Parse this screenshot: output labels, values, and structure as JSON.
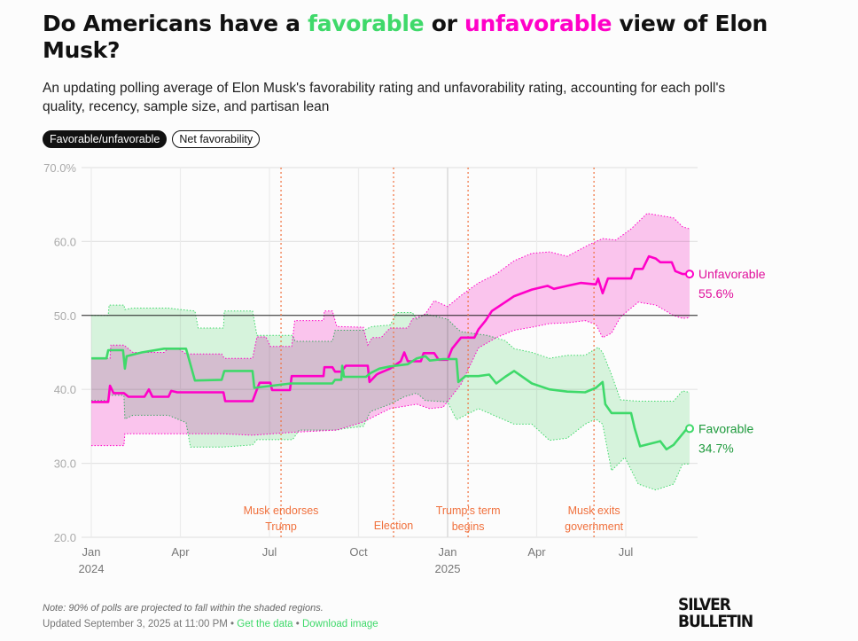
{
  "title": {
    "prefix": "Do Americans have a ",
    "favorable": "favorable",
    "middle": " or ",
    "unfavorable": "unfavorable",
    "suffix": " view of Elon Musk?"
  },
  "subtitle": "An updating polling average of Elon Musk's favorability rating and unfavorability rating, accounting for each poll's quality, recency, sample size, and partisan lean",
  "toggles": [
    {
      "label": "Favorable/unfavorable",
      "active": true
    },
    {
      "label": "Net favorability",
      "active": false
    }
  ],
  "footer": {
    "note": "Note: 90% of polls are projected to fall within the shaded regions.",
    "updated": "Updated September 3, 2025 at 11:00 PM",
    "sep": " • ",
    "get_data": "Get the data",
    "download": "Download image"
  },
  "logo": {
    "line1": "SILVER",
    "line2": "BULLETIN"
  },
  "colors": {
    "favorable": "#3fd96a",
    "unfavorable": "#ff00c8",
    "fav_band": "#d9f6df",
    "unf_band": "#fdc7f0",
    "event": "#f0703c",
    "fav_label": "#1e9a3c",
    "unf_label": "#e0109c"
  },
  "chart_data": {
    "type": "line",
    "x_unit": "months since Jan 2024",
    "xlim": [
      0,
      20.6
    ],
    "ylim": [
      20,
      70
    ],
    "yticks": [
      {
        "v": 70,
        "label": "70.0%"
      },
      {
        "v": 60,
        "label": "60.0"
      },
      {
        "v": 50,
        "label": "50.0"
      },
      {
        "v": 40,
        "label": "40.0"
      },
      {
        "v": 30,
        "label": "30.0"
      },
      {
        "v": 20,
        "label": "20.0"
      }
    ],
    "xticks": [
      {
        "v": 0,
        "label": "Jan",
        "year": "2024"
      },
      {
        "v": 3,
        "label": "Apr"
      },
      {
        "v": 6,
        "label": "Jul"
      },
      {
        "v": 9,
        "label": "Oct"
      },
      {
        "v": 12,
        "label": "Jan",
        "year": "2025"
      },
      {
        "v": 15,
        "label": "Apr"
      },
      {
        "v": 18,
        "label": "Jul"
      }
    ],
    "reference_line": 50,
    "events": [
      {
        "x": 6.39,
        "lines": [
          "Musk endorses",
          "Trump"
        ]
      },
      {
        "x": 10.18,
        "lines": [
          "Election"
        ]
      },
      {
        "x": 12.69,
        "lines": [
          "Trump's term",
          "begins"
        ]
      },
      {
        "x": 16.93,
        "lines": [
          "Musk exits",
          "government"
        ]
      }
    ],
    "series": [
      {
        "name": "Unfavorable",
        "final_label": "55.6%",
        "color_key": "unfavorable",
        "values": [
          [
            0,
            38.3
          ],
          [
            0.57,
            38.3
          ],
          [
            0.63,
            40.5
          ],
          [
            0.75,
            39.5
          ],
          [
            1.1,
            39.5
          ],
          [
            1.25,
            39
          ],
          [
            1.79,
            39
          ],
          [
            1.94,
            40
          ],
          [
            2.06,
            39
          ],
          [
            2.6,
            39
          ],
          [
            2.69,
            39.8
          ],
          [
            2.9,
            39.6
          ],
          [
            4.45,
            39.6
          ],
          [
            4.51,
            38.4
          ],
          [
            5.43,
            38.4
          ],
          [
            5.58,
            40
          ],
          [
            5.67,
            40.9
          ],
          [
            6.03,
            40.9
          ],
          [
            6.09,
            39.9
          ],
          [
            6.69,
            39.9
          ],
          [
            6.75,
            41.8
          ],
          [
            7.82,
            41.8
          ],
          [
            7.85,
            43
          ],
          [
            8.12,
            43
          ],
          [
            8.21,
            42.4
          ],
          [
            8.42,
            42.4
          ],
          [
            8.57,
            43.2
          ],
          [
            9.31,
            43.2
          ],
          [
            9.37,
            41
          ],
          [
            9.61,
            42
          ],
          [
            9.7,
            42.2
          ],
          [
            10.06,
            42.8
          ],
          [
            10.42,
            43.8
          ],
          [
            10.54,
            45
          ],
          [
            10.66,
            43.8
          ],
          [
            11.1,
            43.8
          ],
          [
            11.19,
            44.9
          ],
          [
            11.55,
            44.9
          ],
          [
            11.7,
            44
          ],
          [
            12.0,
            44
          ],
          [
            12.15,
            45.5
          ],
          [
            12.45,
            47
          ],
          [
            12.9,
            47
          ],
          [
            13.04,
            48.1
          ],
          [
            13.28,
            49.3
          ],
          [
            13.49,
            50.6
          ],
          [
            13.94,
            51.8
          ],
          [
            14.24,
            52.6
          ],
          [
            14.84,
            53.5
          ],
          [
            15.37,
            54
          ],
          [
            15.58,
            53.6
          ],
          [
            16.03,
            54
          ],
          [
            16.48,
            54.4
          ],
          [
            16.99,
            54.2
          ],
          [
            17.07,
            55
          ],
          [
            17.22,
            53
          ],
          [
            17.4,
            55
          ],
          [
            18.18,
            55
          ],
          [
            18.3,
            56.3
          ],
          [
            18.57,
            56.3
          ],
          [
            18.78,
            58
          ],
          [
            19.01,
            57.7
          ],
          [
            19.16,
            57.2
          ],
          [
            19.55,
            57.2
          ],
          [
            19.67,
            56
          ],
          [
            19.91,
            55.6
          ],
          [
            20.15,
            55.6
          ]
        ],
        "band_upper": [
          [
            0,
            44.2
          ],
          [
            0.63,
            44.2
          ],
          [
            0.66,
            46
          ],
          [
            1.1,
            46
          ],
          [
            1.4,
            45
          ],
          [
            2.45,
            45
          ],
          [
            2.6,
            45.6
          ],
          [
            2.9,
            45.6
          ],
          [
            3.19,
            44.8
          ],
          [
            4.39,
            44.8
          ],
          [
            4.48,
            44.2
          ],
          [
            5.43,
            44.2
          ],
          [
            5.58,
            47.1
          ],
          [
            5.88,
            47.1
          ],
          [
            6.03,
            45.8
          ],
          [
            6.75,
            45.8
          ],
          [
            6.85,
            49.3
          ],
          [
            7.82,
            49.3
          ],
          [
            7.85,
            50.6
          ],
          [
            8.12,
            50.6
          ],
          [
            8.27,
            48.5
          ],
          [
            9.16,
            48.4
          ],
          [
            9.31,
            46
          ],
          [
            9.46,
            47
          ],
          [
            9.76,
            47
          ],
          [
            10.06,
            48.3
          ],
          [
            10.66,
            48.3
          ],
          [
            10.81,
            49.5
          ],
          [
            11.25,
            50.2
          ],
          [
            11.55,
            52
          ],
          [
            12.0,
            51.2
          ],
          [
            12.45,
            52.7
          ],
          [
            13.04,
            54.4
          ],
          [
            13.64,
            55.6
          ],
          [
            14.24,
            57.4
          ],
          [
            14.84,
            58.4
          ],
          [
            15.43,
            58.6
          ],
          [
            16.03,
            58
          ],
          [
            16.78,
            59.6
          ],
          [
            17.22,
            60.4
          ],
          [
            17.67,
            60.2
          ],
          [
            18.18,
            61.7
          ],
          [
            18.72,
            63.8
          ],
          [
            19.61,
            63.2
          ],
          [
            19.91,
            62
          ],
          [
            20.15,
            61.7
          ]
        ],
        "band_lower": [
          [
            0,
            32.4
          ],
          [
            1.1,
            32.4
          ],
          [
            1.13,
            34
          ],
          [
            4.39,
            34
          ],
          [
            5.43,
            33.8
          ],
          [
            6.78,
            34.2
          ],
          [
            8.27,
            34.5
          ],
          [
            9.16,
            35.6
          ],
          [
            9.46,
            36.2
          ],
          [
            10.06,
            37.4
          ],
          [
            10.96,
            38
          ],
          [
            11.4,
            37.4
          ],
          [
            11.85,
            37.6
          ],
          [
            12.45,
            40.7
          ],
          [
            13.04,
            45.6
          ],
          [
            13.64,
            47
          ],
          [
            14.24,
            48
          ],
          [
            14.84,
            48.4
          ],
          [
            15.43,
            48.9
          ],
          [
            16.03,
            49
          ],
          [
            16.63,
            49.3
          ],
          [
            16.99,
            48.8
          ],
          [
            17.22,
            47
          ],
          [
            17.52,
            47.6
          ],
          [
            17.82,
            49.8
          ],
          [
            18.42,
            51.8
          ],
          [
            19.01,
            51.4
          ],
          [
            19.61,
            50
          ],
          [
            19.91,
            49.6
          ],
          [
            20.15,
            49.7
          ]
        ]
      },
      {
        "name": "Favorable",
        "final_label": "34.7%",
        "color_key": "favorable",
        "values": [
          [
            0,
            44.2
          ],
          [
            0.51,
            44.2
          ],
          [
            0.57,
            45.3
          ],
          [
            1.07,
            45.3
          ],
          [
            1.13,
            42.8
          ],
          [
            1.19,
            44.5
          ],
          [
            1.7,
            45
          ],
          [
            2.45,
            45.5
          ],
          [
            3.19,
            45.5
          ],
          [
            3.49,
            41.2
          ],
          [
            4.39,
            41.3
          ],
          [
            4.48,
            42.5
          ],
          [
            5.43,
            42.5
          ],
          [
            5.49,
            40.2
          ],
          [
            6.72,
            40.8
          ],
          [
            8.12,
            40.8
          ],
          [
            8.21,
            41.3
          ],
          [
            8.42,
            41.3
          ],
          [
            8.45,
            43.2
          ],
          [
            8.51,
            41.7
          ],
          [
            9.25,
            41.7
          ],
          [
            9.4,
            42.2
          ],
          [
            9.7,
            42.8
          ],
          [
            10.06,
            43.1
          ],
          [
            10.66,
            43.4
          ],
          [
            10.96,
            44.2
          ],
          [
            11.25,
            44.5
          ],
          [
            11.4,
            43.9
          ],
          [
            11.85,
            44.1
          ],
          [
            12.3,
            44.1
          ],
          [
            12.36,
            41
          ],
          [
            12.6,
            41.8
          ],
          [
            13.04,
            41.8
          ],
          [
            13.4,
            42
          ],
          [
            13.64,
            40.8
          ],
          [
            13.94,
            41.7
          ],
          [
            14.24,
            42.5
          ],
          [
            14.84,
            40.8
          ],
          [
            15.43,
            40
          ],
          [
            16.03,
            39.7
          ],
          [
            16.63,
            39.6
          ],
          [
            16.99,
            40.2
          ],
          [
            17.22,
            41
          ],
          [
            17.31,
            38
          ],
          [
            17.52,
            36.8
          ],
          [
            18.18,
            36.8
          ],
          [
            18.3,
            34.7
          ],
          [
            18.48,
            32.3
          ],
          [
            19.16,
            33
          ],
          [
            19.37,
            31.9
          ],
          [
            19.61,
            32.5
          ],
          [
            20.06,
            34.7
          ],
          [
            20.15,
            34.7
          ]
        ],
        "band_upper": [
          [
            0,
            50
          ],
          [
            0.57,
            50
          ],
          [
            0.6,
            51.4
          ],
          [
            1.1,
            51.4
          ],
          [
            1.13,
            50.8
          ],
          [
            1.4,
            51
          ],
          [
            2.6,
            51
          ],
          [
            3.0,
            50.8
          ],
          [
            3.49,
            50.6
          ],
          [
            3.6,
            48.3
          ],
          [
            4.45,
            48.3
          ],
          [
            4.48,
            50.6
          ],
          [
            5.43,
            50.6
          ],
          [
            5.58,
            47.3
          ],
          [
            6.78,
            47.3
          ],
          [
            6.87,
            46.5
          ],
          [
            8.12,
            46.5
          ],
          [
            8.21,
            48
          ],
          [
            9.16,
            48
          ],
          [
            9.46,
            48.5
          ],
          [
            10.06,
            48.7
          ],
          [
            10.3,
            50.4
          ],
          [
            10.81,
            50.4
          ],
          [
            10.96,
            49.5
          ],
          [
            11.25,
            50.2
          ],
          [
            12.0,
            49.5
          ],
          [
            12.3,
            48.3
          ],
          [
            12.45,
            47.8
          ],
          [
            13.34,
            47.3
          ],
          [
            13.94,
            46.6
          ],
          [
            14.24,
            45.5
          ],
          [
            14.84,
            45
          ],
          [
            15.43,
            44.2
          ],
          [
            16.03,
            44.6
          ],
          [
            16.63,
            44.6
          ],
          [
            17.07,
            45.7
          ],
          [
            17.22,
            45
          ],
          [
            17.52,
            42
          ],
          [
            17.82,
            38.6
          ],
          [
            18.42,
            38.4
          ],
          [
            19.61,
            38.4
          ],
          [
            19.91,
            39.8
          ],
          [
            20.15,
            39.6
          ]
        ],
        "band_lower": [
          [
            0,
            38.5
          ],
          [
            0.57,
            38.5
          ],
          [
            0.6,
            39.2
          ],
          [
            1.1,
            39.2
          ],
          [
            1.13,
            36
          ],
          [
            1.4,
            36.5
          ],
          [
            2.6,
            36.5
          ],
          [
            3.19,
            35.5
          ],
          [
            3.34,
            32.2
          ],
          [
            4.39,
            32.2
          ],
          [
            5.43,
            32.5
          ],
          [
            5.58,
            33.2
          ],
          [
            6.78,
            33.2
          ],
          [
            7.0,
            34.5
          ],
          [
            8.27,
            34.5
          ],
          [
            8.51,
            34.7
          ],
          [
            9.16,
            35
          ],
          [
            9.4,
            37
          ],
          [
            10.06,
            38
          ],
          [
            10.54,
            39
          ],
          [
            10.96,
            39.5
          ],
          [
            11.25,
            38.5
          ],
          [
            12.0,
            38.3
          ],
          [
            12.3,
            35.9
          ],
          [
            13.04,
            37.4
          ],
          [
            14.24,
            35.3
          ],
          [
            14.84,
            35.3
          ],
          [
            15.43,
            33.1
          ],
          [
            16.03,
            33.4
          ],
          [
            16.63,
            35.3
          ],
          [
            16.99,
            36
          ],
          [
            17.22,
            35.3
          ],
          [
            17.52,
            29
          ],
          [
            17.97,
            30.8
          ],
          [
            18.42,
            27.2
          ],
          [
            19.01,
            26.4
          ],
          [
            19.61,
            27.2
          ],
          [
            19.91,
            29.9
          ],
          [
            20.15,
            29.9
          ]
        ]
      }
    ],
    "legend": "right-end labels"
  }
}
